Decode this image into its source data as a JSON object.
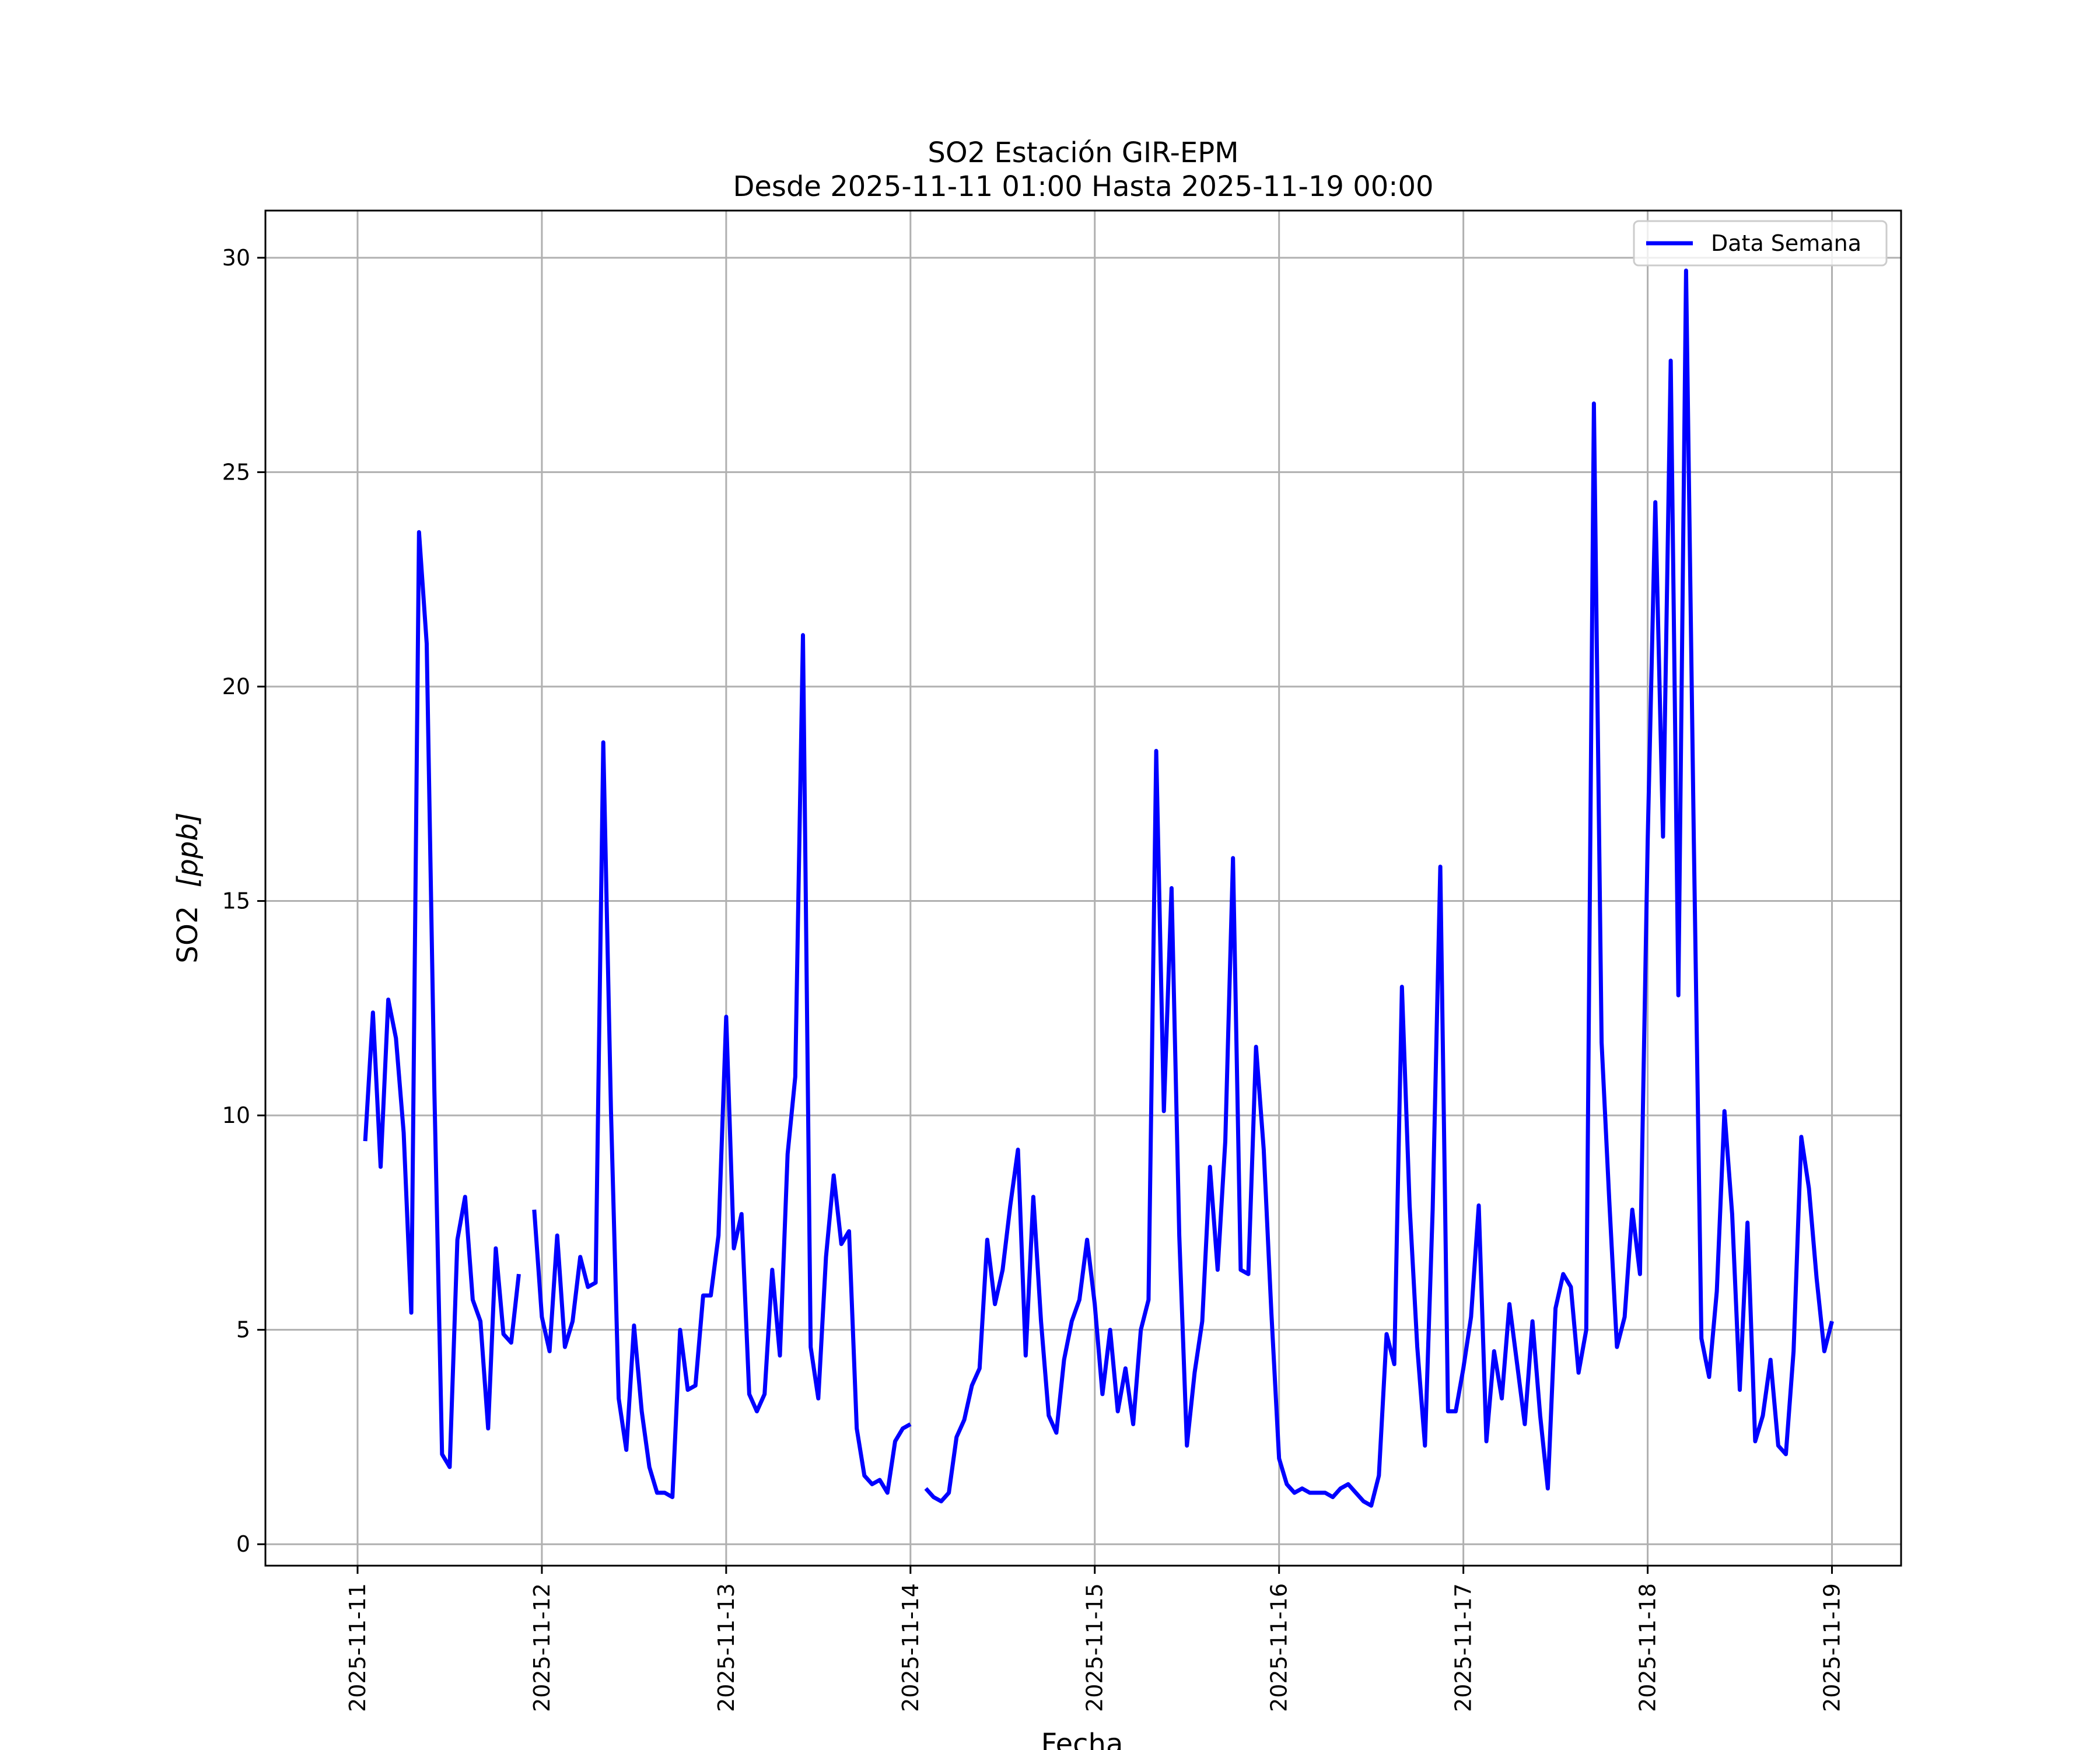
{
  "chart_data": {
    "type": "line",
    "title": "SO2 Estación GIR-EPM",
    "subtitle": "Desde 2025-11-11 01:00 Hasta 2025-11-19 00:00",
    "xlabel": "Fecha",
    "ylabel_main": "SO2",
    "ylabel_unit": "[ppb]",
    "x_ticks": [
      "2025-11-11",
      "2025-11-12",
      "2025-11-13",
      "2025-11-14",
      "2025-11-15",
      "2025-11-16",
      "2025-11-17",
      "2025-11-18",
      "2025-11-19"
    ],
    "y_ticks": [
      0,
      5,
      10,
      15,
      20,
      25,
      30
    ],
    "xlim": [
      "2025-11-10 12:00",
      "2025-11-19 09:00"
    ],
    "ylim": [
      -0.5,
      31.1
    ],
    "grid": true,
    "legend_position": "upper right",
    "series": [
      {
        "name": "Data Semana",
        "color": "#0000ff",
        "points": [
          [
            "2025-11-11 01:00",
            9.4
          ],
          [
            "2025-11-11 02:00",
            12.4
          ],
          [
            "2025-11-11 03:00",
            8.8
          ],
          [
            "2025-11-11 04:00",
            12.7
          ],
          [
            "2025-11-11 05:00",
            11.8
          ],
          [
            "2025-11-11 06:00",
            9.6
          ],
          [
            "2025-11-11 07:00",
            5.4
          ],
          [
            "2025-11-11 08:00",
            23.6
          ],
          [
            "2025-11-11 09:00",
            21.0
          ],
          [
            "2025-11-11 10:00",
            10.6
          ],
          [
            "2025-11-11 11:00",
            2.1
          ],
          [
            "2025-11-11 12:00",
            1.8
          ],
          [
            "2025-11-11 13:00",
            7.1
          ],
          [
            "2025-11-11 14:00",
            8.1
          ],
          [
            "2025-11-11 15:00",
            5.7
          ],
          [
            "2025-11-11 16:00",
            5.2
          ],
          [
            "2025-11-11 17:00",
            2.7
          ],
          [
            "2025-11-11 18:00",
            6.9
          ],
          [
            "2025-11-11 19:00",
            4.9
          ],
          [
            "2025-11-11 20:00",
            4.7
          ],
          [
            "2025-11-11 21:00",
            6.3
          ],
          [
            "2025-11-11 22:00",
            null
          ],
          [
            "2025-11-11 23:00",
            7.8
          ],
          [
            "2025-11-12 00:00",
            5.3
          ],
          [
            "2025-11-12 01:00",
            4.5
          ],
          [
            "2025-11-12 02:00",
            7.2
          ],
          [
            "2025-11-12 03:00",
            4.6
          ],
          [
            "2025-11-12 04:00",
            5.2
          ],
          [
            "2025-11-12 05:00",
            6.7
          ],
          [
            "2025-11-12 06:00",
            6.0
          ],
          [
            "2025-11-12 07:00",
            6.1
          ],
          [
            "2025-11-12 08:00",
            18.7
          ],
          [
            "2025-11-12 09:00",
            10.1
          ],
          [
            "2025-11-12 10:00",
            3.4
          ],
          [
            "2025-11-12 11:00",
            2.2
          ],
          [
            "2025-11-12 12:00",
            5.1
          ],
          [
            "2025-11-12 13:00",
            3.1
          ],
          [
            "2025-11-12 14:00",
            1.8
          ],
          [
            "2025-11-12 15:00",
            1.2
          ],
          [
            "2025-11-12 16:00",
            1.2
          ],
          [
            "2025-11-12 17:00",
            1.1
          ],
          [
            "2025-11-12 18:00",
            5.0
          ],
          [
            "2025-11-12 19:00",
            3.6
          ],
          [
            "2025-11-12 20:00",
            3.7
          ],
          [
            "2025-11-12 21:00",
            5.8
          ],
          [
            "2025-11-12 22:00",
            5.8
          ],
          [
            "2025-11-12 23:00",
            7.2
          ],
          [
            "2025-11-13 00:00",
            12.3
          ],
          [
            "2025-11-13 01:00",
            6.9
          ],
          [
            "2025-11-13 02:00",
            7.7
          ],
          [
            "2025-11-13 03:00",
            3.5
          ],
          [
            "2025-11-13 04:00",
            3.1
          ],
          [
            "2025-11-13 05:00",
            3.5
          ],
          [
            "2025-11-13 06:00",
            6.4
          ],
          [
            "2025-11-13 07:00",
            4.4
          ],
          [
            "2025-11-13 08:00",
            9.1
          ],
          [
            "2025-11-13 09:00",
            10.9
          ],
          [
            "2025-11-13 10:00",
            21.2
          ],
          [
            "2025-11-13 11:00",
            4.6
          ],
          [
            "2025-11-13 12:00",
            3.4
          ],
          [
            "2025-11-13 13:00",
            6.7
          ],
          [
            "2025-11-13 14:00",
            8.6
          ],
          [
            "2025-11-13 15:00",
            7.0
          ],
          [
            "2025-11-13 16:00",
            7.3
          ],
          [
            "2025-11-13 17:00",
            2.7
          ],
          [
            "2025-11-13 18:00",
            1.6
          ],
          [
            "2025-11-13 19:00",
            1.4
          ],
          [
            "2025-11-13 20:00",
            1.5
          ],
          [
            "2025-11-13 21:00",
            1.2
          ],
          [
            "2025-11-13 22:00",
            2.4
          ],
          [
            "2025-11-13 23:00",
            2.7
          ],
          [
            "2025-11-14 00:00",
            2.8
          ],
          [
            "2025-11-14 01:00",
            null
          ],
          [
            "2025-11-14 02:00",
            1.3
          ],
          [
            "2025-11-14 03:00",
            1.1
          ],
          [
            "2025-11-14 04:00",
            1.0
          ],
          [
            "2025-11-14 05:00",
            1.2
          ],
          [
            "2025-11-14 06:00",
            2.5
          ],
          [
            "2025-11-14 07:00",
            2.9
          ],
          [
            "2025-11-14 08:00",
            3.7
          ],
          [
            "2025-11-14 09:00",
            4.1
          ],
          [
            "2025-11-14 10:00",
            7.1
          ],
          [
            "2025-11-14 11:00",
            5.6
          ],
          [
            "2025-11-14 12:00",
            6.4
          ],
          [
            "2025-11-14 13:00",
            7.9
          ],
          [
            "2025-11-14 14:00",
            9.2
          ],
          [
            "2025-11-14 15:00",
            4.4
          ],
          [
            "2025-11-14 16:00",
            8.1
          ],
          [
            "2025-11-14 17:00",
            5.2
          ],
          [
            "2025-11-14 18:00",
            3.0
          ],
          [
            "2025-11-14 19:00",
            2.6
          ],
          [
            "2025-11-14 20:00",
            4.3
          ],
          [
            "2025-11-14 21:00",
            5.2
          ],
          [
            "2025-11-14 22:00",
            5.7
          ],
          [
            "2025-11-14 23:00",
            7.1
          ],
          [
            "2025-11-15 00:00",
            5.6
          ],
          [
            "2025-11-15 01:00",
            3.5
          ],
          [
            "2025-11-15 02:00",
            5.0
          ],
          [
            "2025-11-15 03:00",
            3.1
          ],
          [
            "2025-11-15 04:00",
            4.1
          ],
          [
            "2025-11-15 05:00",
            2.8
          ],
          [
            "2025-11-15 06:00",
            5.0
          ],
          [
            "2025-11-15 07:00",
            5.7
          ],
          [
            "2025-11-15 08:00",
            18.5
          ],
          [
            "2025-11-15 09:00",
            10.1
          ],
          [
            "2025-11-15 10:00",
            15.3
          ],
          [
            "2025-11-15 11:00",
            7.2
          ],
          [
            "2025-11-15 12:00",
            2.3
          ],
          [
            "2025-11-15 13:00",
            4.0
          ],
          [
            "2025-11-15 14:00",
            5.2
          ],
          [
            "2025-11-15 15:00",
            8.8
          ],
          [
            "2025-11-15 16:00",
            6.4
          ],
          [
            "2025-11-15 17:00",
            9.4
          ],
          [
            "2025-11-15 18:00",
            16.0
          ],
          [
            "2025-11-15 19:00",
            6.4
          ],
          [
            "2025-11-15 20:00",
            6.3
          ],
          [
            "2025-11-15 21:00",
            11.6
          ],
          [
            "2025-11-15 22:00",
            9.2
          ],
          [
            "2025-11-15 23:00",
            5.4
          ],
          [
            "2025-11-16 00:00",
            2.0
          ],
          [
            "2025-11-16 01:00",
            1.4
          ],
          [
            "2025-11-16 02:00",
            1.2
          ],
          [
            "2025-11-16 03:00",
            1.3
          ],
          [
            "2025-11-16 04:00",
            1.2
          ],
          [
            "2025-11-16 05:00",
            1.2
          ],
          [
            "2025-11-16 06:00",
            1.2
          ],
          [
            "2025-11-16 07:00",
            1.1
          ],
          [
            "2025-11-16 08:00",
            1.3
          ],
          [
            "2025-11-16 09:00",
            1.4
          ],
          [
            "2025-11-16 10:00",
            1.2
          ],
          [
            "2025-11-16 11:00",
            1.0
          ],
          [
            "2025-11-16 12:00",
            0.9
          ],
          [
            "2025-11-16 13:00",
            1.6
          ],
          [
            "2025-11-16 14:00",
            4.9
          ],
          [
            "2025-11-16 15:00",
            4.2
          ],
          [
            "2025-11-16 16:00",
            13.0
          ],
          [
            "2025-11-16 17:00",
            7.9
          ],
          [
            "2025-11-16 18:00",
            4.6
          ],
          [
            "2025-11-16 19:00",
            2.3
          ],
          [
            "2025-11-16 20:00",
            7.8
          ],
          [
            "2025-11-16 21:00",
            15.8
          ],
          [
            "2025-11-16 22:00",
            3.1
          ],
          [
            "2025-11-16 23:00",
            3.1
          ],
          [
            "2025-11-17 00:00",
            4.1
          ],
          [
            "2025-11-17 01:00",
            5.3
          ],
          [
            "2025-11-17 02:00",
            7.9
          ],
          [
            "2025-11-17 03:00",
            2.4
          ],
          [
            "2025-11-17 04:00",
            4.5
          ],
          [
            "2025-11-17 05:00",
            3.4
          ],
          [
            "2025-11-17 06:00",
            5.6
          ],
          [
            "2025-11-17 07:00",
            4.2
          ],
          [
            "2025-11-17 08:00",
            2.8
          ],
          [
            "2025-11-17 09:00",
            5.2
          ],
          [
            "2025-11-17 10:00",
            3.0
          ],
          [
            "2025-11-17 11:00",
            1.3
          ],
          [
            "2025-11-17 12:00",
            5.5
          ],
          [
            "2025-11-17 13:00",
            6.3
          ],
          [
            "2025-11-17 14:00",
            6.0
          ],
          [
            "2025-11-17 15:00",
            4.0
          ],
          [
            "2025-11-17 16:00",
            5.0
          ],
          [
            "2025-11-17 17:00",
            26.6
          ],
          [
            "2025-11-17 18:00",
            11.7
          ],
          [
            "2025-11-17 19:00",
            8.0
          ],
          [
            "2025-11-17 20:00",
            4.6
          ],
          [
            "2025-11-17 21:00",
            5.3
          ],
          [
            "2025-11-17 22:00",
            7.8
          ],
          [
            "2025-11-17 23:00",
            6.3
          ],
          [
            "2025-11-18 00:00",
            16.4
          ],
          [
            "2025-11-18 01:00",
            24.3
          ],
          [
            "2025-11-18 02:00",
            16.5
          ],
          [
            "2025-11-18 03:00",
            27.6
          ],
          [
            "2025-11-18 04:00",
            12.8
          ],
          [
            "2025-11-18 05:00",
            29.7
          ],
          [
            "2025-11-18 06:00",
            16.5
          ],
          [
            "2025-11-18 07:00",
            4.8
          ],
          [
            "2025-11-18 08:00",
            3.9
          ],
          [
            "2025-11-18 09:00",
            5.9
          ],
          [
            "2025-11-18 10:00",
            10.1
          ],
          [
            "2025-11-18 11:00",
            7.7
          ],
          [
            "2025-11-18 12:00",
            3.6
          ],
          [
            "2025-11-18 13:00",
            7.5
          ],
          [
            "2025-11-18 14:00",
            2.4
          ],
          [
            "2025-11-18 15:00",
            3.0
          ],
          [
            "2025-11-18 16:00",
            4.3
          ],
          [
            "2025-11-18 17:00",
            2.3
          ],
          [
            "2025-11-18 18:00",
            2.1
          ],
          [
            "2025-11-18 19:00",
            4.5
          ],
          [
            "2025-11-18 20:00",
            9.5
          ],
          [
            "2025-11-18 21:00",
            8.3
          ],
          [
            "2025-11-18 22:00",
            6.2
          ],
          [
            "2025-11-18 23:00",
            4.5
          ],
          [
            "2025-11-19 00:00",
            5.2
          ]
        ]
      }
    ]
  }
}
